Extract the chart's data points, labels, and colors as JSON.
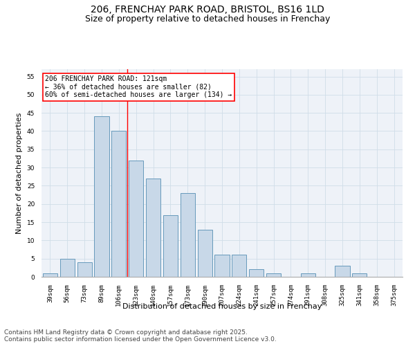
{
  "title1": "206, FRENCHAY PARK ROAD, BRISTOL, BS16 1LD",
  "title2": "Size of property relative to detached houses in Frenchay",
  "xlabel": "Distribution of detached houses by size in Frenchay",
  "ylabel": "Number of detached properties",
  "categories": [
    "39sqm",
    "56sqm",
    "73sqm",
    "89sqm",
    "106sqm",
    "123sqm",
    "140sqm",
    "157sqm",
    "173sqm",
    "190sqm",
    "207sqm",
    "224sqm",
    "241sqm",
    "257sqm",
    "274sqm",
    "291sqm",
    "308sqm",
    "325sqm",
    "341sqm",
    "358sqm",
    "375sqm"
  ],
  "values": [
    1,
    5,
    4,
    44,
    40,
    32,
    27,
    17,
    23,
    13,
    6,
    6,
    2,
    1,
    0,
    1,
    0,
    3,
    1,
    0,
    0
  ],
  "bar_color": "#c8d8e8",
  "bar_edge_color": "#6699bb",
  "grid_color": "#d0dde8",
  "background_color": "#eef2f8",
  "vline_x_index": 4.5,
  "vline_label": "206 FRENCHAY PARK ROAD: 121sqm",
  "vline_label2": "← 36% of detached houses are smaller (82)",
  "vline_label3": "60% of semi-detached houses are larger (134) →",
  "ylim": [
    0,
    57
  ],
  "yticks": [
    0,
    5,
    10,
    15,
    20,
    25,
    30,
    35,
    40,
    45,
    50,
    55
  ],
  "footer1": "Contains HM Land Registry data © Crown copyright and database right 2025.",
  "footer2": "Contains public sector information licensed under the Open Government Licence v3.0.",
  "title_fontsize": 10,
  "subtitle_fontsize": 9,
  "axis_label_fontsize": 8,
  "tick_fontsize": 6.5,
  "annotation_fontsize": 7,
  "footer_fontsize": 6.5
}
